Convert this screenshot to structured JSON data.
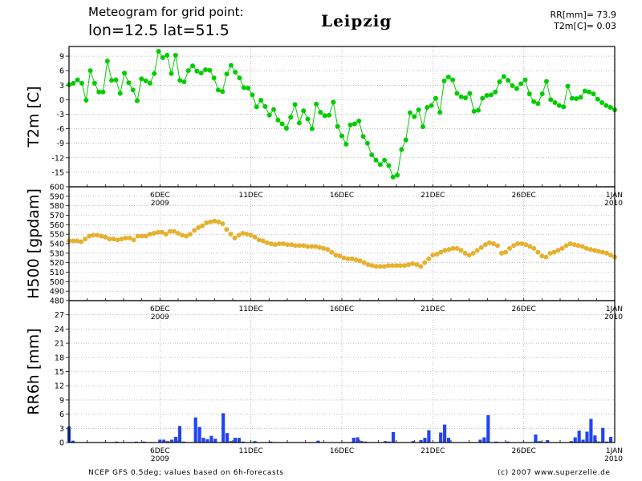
{
  "header": {
    "line1": "Meteogram for grid point:",
    "line2": "lon=12.5  lat=51.5",
    "city": "Leipzig",
    "rr_total": "RR[mm]= 73.9",
    "t2m_last": "T2m[C]= 0.03"
  },
  "footer": {
    "left": "NCEP GFS 0.5deg; values based on 6h-forecasts",
    "right": "(c) 2007 www.superzelle.de"
  },
  "colors": {
    "t2m": "#00cc00",
    "h500": "#e6b030",
    "rr": "#2244ee",
    "axis": "#000000",
    "grid": "#999999"
  },
  "chart_data": [
    {
      "type": "line",
      "ylabel": "T2m [C]",
      "ylim": [
        -18,
        11
      ],
      "yticks": [
        9,
        6,
        3,
        0,
        -3,
        -6,
        -9,
        -12,
        -15
      ],
      "xlim": [
        0,
        120
      ],
      "grid": true,
      "x_tick_labels": [
        {
          "x": 20,
          "label": "6DEC",
          "sub": "2009"
        },
        {
          "x": 40,
          "label": "11DEC",
          "sub": ""
        },
        {
          "x": 60,
          "label": "16DEC",
          "sub": ""
        },
        {
          "x": 80,
          "label": "21DEC",
          "sub": ""
        },
        {
          "x": 100,
          "label": "26DEC",
          "sub": ""
        },
        {
          "x": 120,
          "label": "1JAN",
          "sub": "2010"
        }
      ],
      "series": [
        {
          "values": [
            3.1,
            3.4,
            4.1,
            3.4,
            -0.1,
            6.0,
            3.4,
            1.6,
            1.6,
            8.0,
            4.0,
            4.1,
            1.3,
            5.5,
            3.5,
            2.0,
            -0.2,
            4.3,
            3.9,
            3.4,
            5.4,
            10.0,
            8.7,
            9.2,
            5.4,
            9.2,
            4.0,
            3.7,
            6.0,
            7.0,
            5.9,
            5.5,
            6.2,
            6.1,
            4.5,
            2.0,
            1.7,
            5.3,
            7.1,
            5.7,
            4.5,
            2.5,
            2.4,
            1.0,
            -1.5,
            -0.1,
            -1.4,
            -3.2,
            -2.0,
            -4.2,
            -5.0,
            -5.9,
            -3.6,
            -1.0,
            -4.8,
            -2.3,
            -4.0,
            -6.0,
            -0.9,
            -2.6,
            -3.3,
            -3.2,
            -0.5,
            -5.5,
            -7.5,
            -9.2,
            -5.2,
            -5.0,
            -4.4,
            -7.6,
            -9.0,
            -11.4,
            -12.5,
            -13.4,
            -12.5,
            -13.6,
            -16.0,
            -15.6,
            -10.3,
            -8.3,
            -2.7,
            -3.5,
            -2.1,
            -5.6,
            -1.6,
            -1.2,
            0.3,
            -2.6,
            3.9,
            4.7,
            4.1,
            1.3,
            0.6,
            0.4,
            1.3,
            -2.4,
            -2.2,
            0.3,
            0.9,
            1.0,
            1.6,
            3.7,
            4.8,
            4.0,
            2.9,
            2.3,
            3.3,
            4.1,
            1.2,
            -0.4,
            -0.8,
            1.2,
            3.8,
            0.0,
            -0.6,
            -1.2,
            -1.5,
            2.8,
            0.3,
            0.2,
            0.5,
            1.8,
            1.6,
            1.2,
            0.1,
            -0.6,
            -1.2,
            -1.6,
            -2.1
          ]
        }
      ]
    },
    {
      "type": "line",
      "ylabel": "H500 [gpdam]",
      "ylim": [
        480,
        600
      ],
      "yticks": [
        600,
        590,
        580,
        570,
        560,
        550,
        540,
        530,
        520,
        510,
        500,
        490,
        480
      ],
      "xlim": [
        0,
        120
      ],
      "grid": true,
      "x_tick_labels": [
        {
          "x": 20,
          "label": "6DEC",
          "sub": "2009"
        },
        {
          "x": 40,
          "label": "11DEC",
          "sub": ""
        },
        {
          "x": 60,
          "label": "16DEC",
          "sub": ""
        },
        {
          "x": 80,
          "label": "21DEC",
          "sub": ""
        },
        {
          "x": 100,
          "label": "26DEC",
          "sub": ""
        },
        {
          "x": 120,
          "label": "1JAN",
          "sub": "2010"
        }
      ],
      "series": [
        {
          "values": [
            543,
            543,
            543,
            542,
            545,
            548,
            549,
            549,
            548,
            547,
            545,
            545,
            544,
            545,
            546,
            546,
            544,
            548,
            548,
            548,
            550,
            551,
            552,
            552,
            550,
            553,
            553,
            551,
            549,
            548,
            550,
            554,
            557,
            559,
            562,
            563,
            564,
            563,
            561,
            555,
            550,
            546,
            549,
            551,
            550,
            549,
            547,
            544,
            543,
            541,
            540,
            539,
            540,
            540,
            539,
            539,
            538,
            538,
            538,
            537,
            537,
            537,
            536,
            535,
            534,
            531,
            528,
            527,
            525,
            524,
            524,
            523,
            522,
            520,
            518,
            517,
            516,
            516,
            516,
            517,
            517,
            517,
            517,
            517,
            518,
            519,
            518,
            516,
            520,
            524,
            528,
            529,
            531,
            533,
            534,
            535,
            535,
            533,
            530,
            528,
            530,
            533,
            536,
            539,
            541,
            540,
            538,
            530,
            531,
            535,
            538,
            540,
            540,
            539,
            537,
            535,
            531,
            527,
            526,
            530,
            531,
            533,
            535,
            538,
            540,
            539,
            538,
            537,
            535,
            534,
            533,
            532,
            531,
            530,
            528,
            526
          ]
        }
      ]
    },
    {
      "type": "bar",
      "ylabel": "RR6h [mm]",
      "ylim": [
        0,
        30
      ],
      "yticks": [
        27,
        24,
        21,
        18,
        15,
        12,
        9,
        6,
        3,
        0
      ],
      "xlim": [
        0,
        120
      ],
      "grid": true,
      "x_tick_labels": [
        {
          "x": 20,
          "label": "6DEC",
          "sub": "2009"
        },
        {
          "x": 40,
          "label": "11DEC",
          "sub": ""
        },
        {
          "x": 60,
          "label": "16DEC",
          "sub": ""
        },
        {
          "x": 80,
          "label": "21DEC",
          "sub": ""
        },
        {
          "x": 100,
          "label": "26DEC",
          "sub": ""
        },
        {
          "x": 120,
          "label": "1JAN",
          "sub": "2010"
        }
      ],
      "series": [
        {
          "values": [
            3.4,
            0.4,
            0,
            0,
            0,
            0,
            0,
            0,
            0,
            0,
            0,
            0,
            0.2,
            0,
            0,
            0,
            0,
            0.2,
            0,
            0.2,
            0,
            0,
            0,
            0.6,
            0.6,
            0.3,
            0.6,
            1.2,
            3.5,
            0.2,
            0,
            0,
            5.3,
            3.3,
            1.0,
            0.7,
            1.4,
            0.8,
            0,
            6.2,
            2.0,
            0.3,
            1.0,
            1.0,
            0.2,
            0,
            0,
            0.3,
            0,
            0,
            0,
            0.2,
            0,
            0,
            0,
            0,
            0,
            0,
            0,
            0,
            0,
            0,
            0,
            0.4,
            0,
            0,
            0,
            0,
            0,
            0,
            0,
            0,
            1.0,
            1.1,
            0.3,
            0.2,
            0,
            0,
            0,
            0,
            0.3,
            0.2,
            2.2,
            0,
            0,
            0,
            0,
            0.3,
            0,
            0.5,
            1.0,
            2.6,
            0,
            0,
            2.1,
            3.8,
            1.0,
            0,
            0,
            0,
            0,
            0,
            0,
            0,
            0.6,
            1.1,
            5.8,
            0,
            0.2,
            0,
            0,
            0.2,
            0,
            0,
            0,
            0,
            0,
            0,
            1.7,
            0.3,
            0,
            0.5,
            0,
            0,
            0,
            0,
            0,
            0.3,
            1.1,
            2.5,
            0.6,
            2.3,
            5.0,
            1.5,
            0.2,
            3.1,
            0.2,
            1.2,
            0
          ]
        }
      ]
    }
  ]
}
